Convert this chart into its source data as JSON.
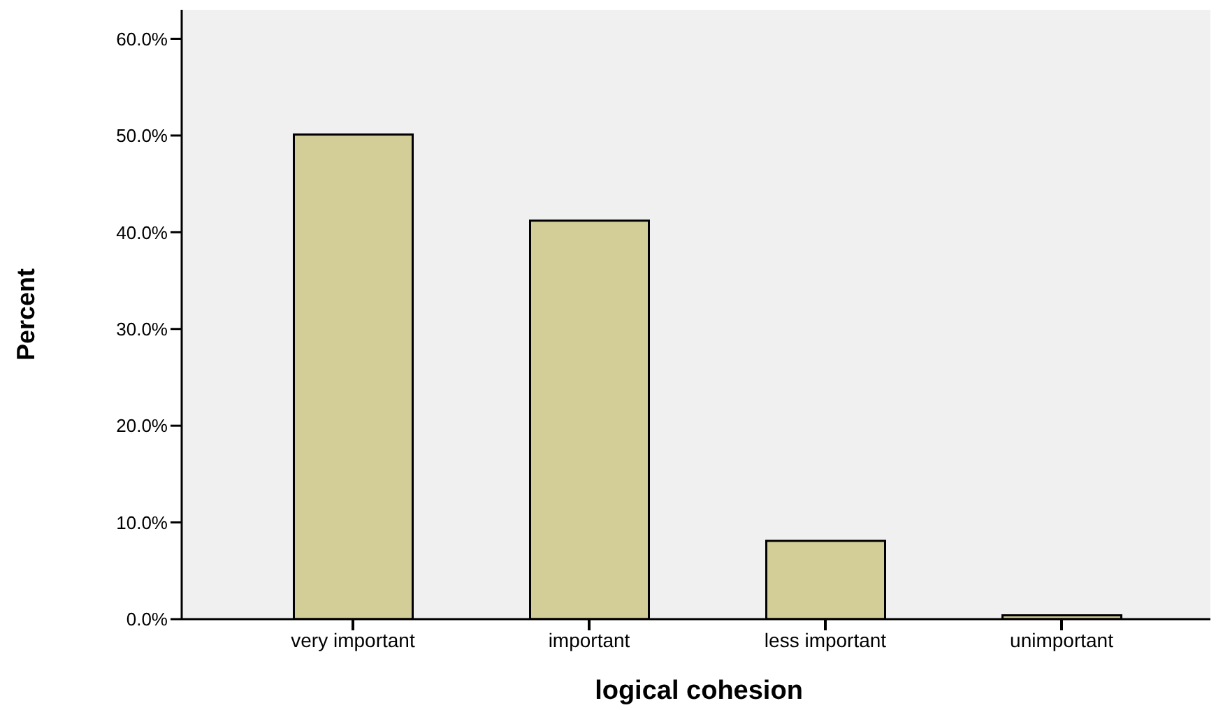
{
  "chart_data": {
    "type": "bar",
    "xlabel": "logical cohesion",
    "ylabel": "Percent",
    "categories": [
      "very important",
      "important",
      "less important",
      "unimportant"
    ],
    "values": [
      50.1,
      41.2,
      8.1,
      0.4
    ],
    "color": "#d3ce97",
    "ylim": [
      0,
      63
    ],
    "yticks": [
      {
        "value": 0,
        "label": "0.0%"
      },
      {
        "value": 10,
        "label": "10.0%"
      },
      {
        "value": 20,
        "label": "20.0%"
      },
      {
        "value": 30,
        "label": "30.0%"
      },
      {
        "value": 40,
        "label": "40.0%"
      },
      {
        "value": 50,
        "label": "50.0%"
      },
      {
        "value": 60,
        "label": "60.0%"
      }
    ]
  }
}
